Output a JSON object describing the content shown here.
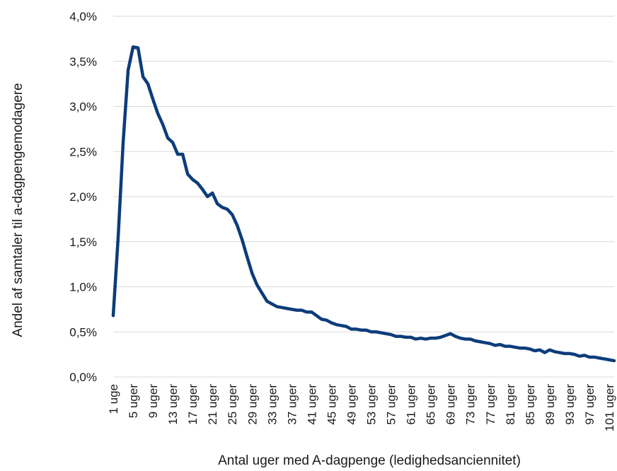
{
  "chart_data": {
    "type": "line",
    "title": "",
    "xlabel": "Antal uger med A-dagpenge (ledighedsanciennitet)",
    "ylabel": "Andel af samtaler til a-dagpengemodagere",
    "ylim": [
      0,
      0.04
    ],
    "y_ticks": [
      0,
      0.005,
      0.01,
      0.015,
      0.02,
      0.025,
      0.03,
      0.035,
      0.04
    ],
    "y_tick_labels": [
      "0,0%",
      "0,5%",
      "1,0%",
      "1,5%",
      "2,0%",
      "2,5%",
      "3,0%",
      "3,5%",
      "4,0%"
    ],
    "x_tick_weeks": [
      1,
      5,
      9,
      13,
      17,
      21,
      25,
      29,
      33,
      37,
      41,
      45,
      49,
      53,
      57,
      61,
      65,
      69,
      73,
      77,
      81,
      85,
      89,
      93,
      97,
      101
    ],
    "x_tick_labels": [
      "1 uge",
      "5 uger",
      "9 uger",
      "13 uger",
      "17 uger",
      "21 uger",
      "25 uger",
      "29 uger",
      "33 uger",
      "37 uger",
      "41 uger",
      "45 uger",
      "49 uger",
      "53 uger",
      "57 uger",
      "61 uger",
      "65 uger",
      "69 uger",
      "73 uger",
      "77 uger",
      "81 uger",
      "85 uger",
      "89 uger",
      "93 uger",
      "97 uger",
      "101 uger"
    ],
    "grid": true,
    "series": [
      {
        "color": "#0d3c7a",
        "x": [
          1,
          2,
          3,
          4,
          5,
          6,
          7,
          8,
          9,
          10,
          11,
          12,
          13,
          14,
          15,
          16,
          17,
          18,
          19,
          20,
          21,
          22,
          23,
          24,
          25,
          26,
          27,
          28,
          29,
          30,
          31,
          32,
          33,
          34,
          35,
          36,
          37,
          38,
          39,
          40,
          41,
          42,
          43,
          44,
          45,
          46,
          47,
          48,
          49,
          50,
          51,
          52,
          53,
          54,
          55,
          56,
          57,
          58,
          59,
          60,
          61,
          62,
          63,
          64,
          65,
          66,
          67,
          68,
          69,
          70,
          71,
          72,
          73,
          74,
          75,
          76,
          77,
          78,
          79,
          80,
          81,
          82,
          83,
          84,
          85,
          86,
          87,
          88,
          89,
          90,
          91,
          92,
          93,
          94,
          95,
          96,
          97,
          98,
          99,
          100,
          101,
          102
        ],
        "values": [
          0.0068,
          0.0155,
          0.026,
          0.034,
          0.0366,
          0.0365,
          0.0333,
          0.0325,
          0.0308,
          0.0292,
          0.028,
          0.0265,
          0.026,
          0.0247,
          0.0247,
          0.0225,
          0.0219,
          0.0215,
          0.0208,
          0.02,
          0.0204,
          0.0192,
          0.0188,
          0.0186,
          0.018,
          0.0168,
          0.0152,
          0.0133,
          0.0115,
          0.0102,
          0.0093,
          0.0084,
          0.0081,
          0.0078,
          0.0077,
          0.0076,
          0.0075,
          0.0074,
          0.0074,
          0.0072,
          0.0072,
          0.0068,
          0.0064,
          0.0063,
          0.006,
          0.0058,
          0.0057,
          0.0056,
          0.0053,
          0.0053,
          0.0052,
          0.0052,
          0.005,
          0.005,
          0.0049,
          0.0048,
          0.0047,
          0.0045,
          0.0045,
          0.0044,
          0.0044,
          0.0042,
          0.0043,
          0.0042,
          0.0043,
          0.0043,
          0.0044,
          0.0046,
          0.0048,
          0.0045,
          0.0043,
          0.0042,
          0.0042,
          0.004,
          0.0039,
          0.0038,
          0.0037,
          0.0035,
          0.0036,
          0.0034,
          0.0034,
          0.0033,
          0.0032,
          0.0032,
          0.0031,
          0.0029,
          0.003,
          0.0027,
          0.003,
          0.0028,
          0.0027,
          0.0026,
          0.0026,
          0.0025,
          0.0023,
          0.0024,
          0.0022,
          0.0022,
          0.0021,
          0.002,
          0.0019,
          0.0018
        ]
      }
    ]
  }
}
